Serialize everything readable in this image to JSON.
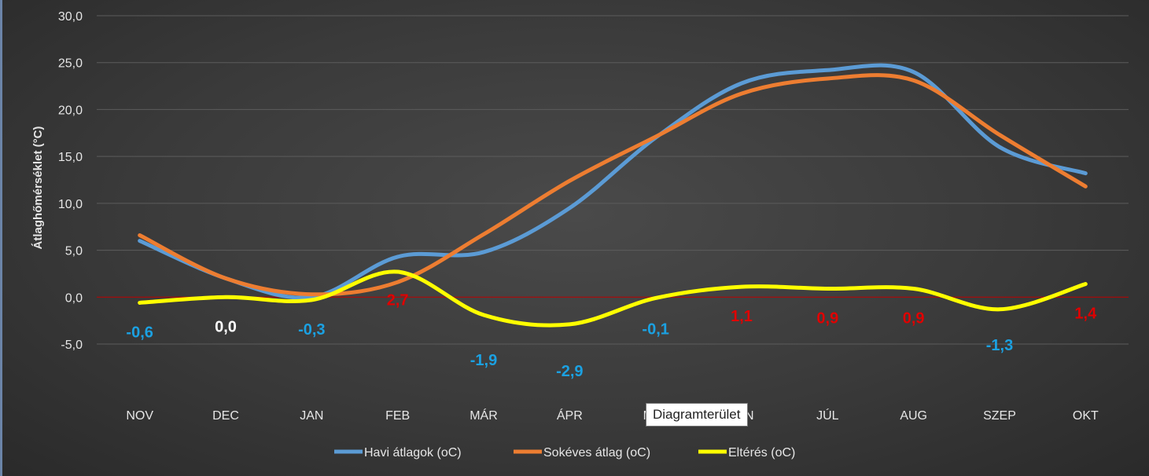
{
  "chart_data": {
    "type": "line",
    "categories": [
      "NOV",
      "DEC",
      "JAN",
      "FEB",
      "MÁR",
      "ÁPR",
      "MÁJ",
      "JÚN",
      "JÚL",
      "AUG",
      "SZEP",
      "OKT"
    ],
    "ylabel": "Átlaghőmérséklet (°C)",
    "ylim": [
      -5,
      30
    ],
    "yticks": [
      "-5,0",
      "0,0",
      "5,0",
      "10,0",
      "15,0",
      "20,0",
      "25,0",
      "30,0"
    ],
    "ytick_values": [
      -5,
      0,
      5,
      10,
      15,
      20,
      25,
      30
    ],
    "grid": true,
    "legend_position": "bottom",
    "series": [
      {
        "name": "Havi átlagok (oC)",
        "color": "#5b9bd5",
        "values": [
          6.0,
          2.0,
          0.0,
          4.3,
          4.8,
          9.5,
          17.0,
          22.8,
          24.2,
          24.0,
          16.0,
          13.2
        ]
      },
      {
        "name": "Sokéves átlag (oC)",
        "color": "#ed7d31",
        "values": [
          6.6,
          2.0,
          0.3,
          1.6,
          6.7,
          12.4,
          17.1,
          21.7,
          23.3,
          23.1,
          17.3,
          11.8
        ]
      },
      {
        "name": "Eltérés (oC)",
        "color": "#ffff00",
        "values": [
          -0.6,
          0.0,
          -0.3,
          2.7,
          -1.9,
          -2.9,
          -0.1,
          1.1,
          0.9,
          0.9,
          -1.3,
          1.4
        ]
      }
    ],
    "data_labels": [
      {
        "text": "-0,6",
        "color": "#1ba1e2"
      },
      {
        "text": "0,0",
        "color": "#ffffff"
      },
      {
        "text": "-0,3",
        "color": "#1ba1e2"
      },
      {
        "text": "2,7",
        "color": "#e00000"
      },
      {
        "text": "-1,9",
        "color": "#1ba1e2"
      },
      {
        "text": "-2,9",
        "color": "#1ba1e2"
      },
      {
        "text": "-0,1",
        "color": "#1ba1e2"
      },
      {
        "text": "1,1",
        "color": "#e00000"
      },
      {
        "text": "0,9",
        "color": "#e00000"
      },
      {
        "text": "0,9",
        "color": "#e00000"
      },
      {
        "text": "-1,3",
        "color": "#1ba1e2"
      },
      {
        "text": "1,4",
        "color": "#e00000"
      }
    ],
    "zero_line_color": "#c00000"
  },
  "tooltip": "Diagramterület"
}
